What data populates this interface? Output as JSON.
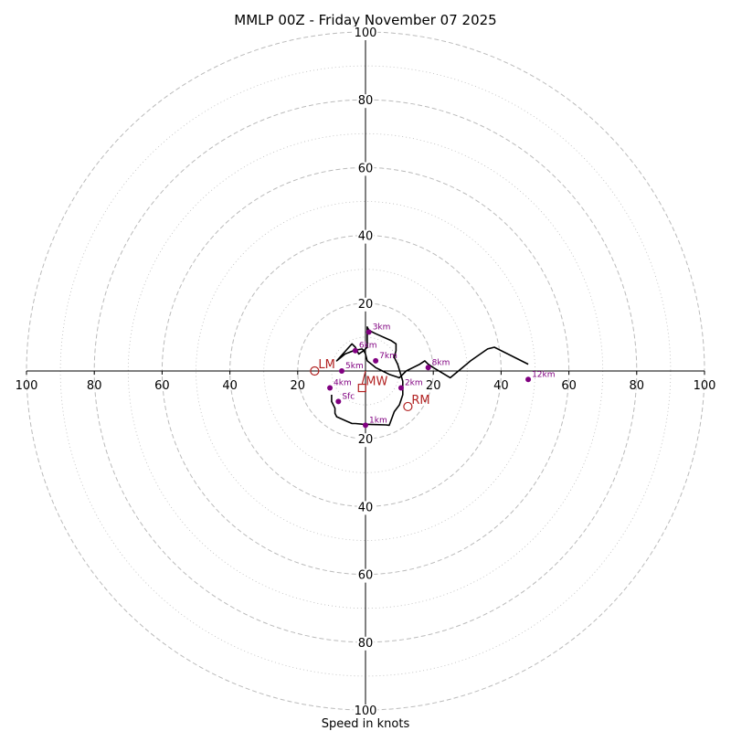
{
  "chart_data": {
    "type": "hodograph",
    "title": "MMLP 00Z - Friday November 07 2025",
    "xlabel": "Speed in knots",
    "range": [
      -100,
      100
    ],
    "rings": [
      20,
      40,
      60,
      80,
      100
    ],
    "tick_labels": [
      "100",
      "80",
      "60",
      "40",
      "20",
      "20",
      "40",
      "60",
      "80",
      "100"
    ],
    "trace_u": [
      -10,
      -10,
      -9,
      -9,
      -8.5,
      -4,
      -3,
      -1,
      2,
      6,
      7,
      8.5,
      10,
      11,
      11,
      11,
      9.5,
      8.5,
      9,
      9,
      7.5,
      3,
      1,
      0.5,
      0.5,
      0.5,
      -0.5,
      -2,
      -3,
      -4,
      -8.5,
      -6,
      -3.5,
      -1,
      -0.5,
      0,
      0.5,
      3,
      5,
      7,
      10,
      12,
      14,
      16,
      17.5,
      18.5,
      20,
      25,
      31,
      36,
      38,
      48
    ],
    "trace_v": [
      -7,
      -9,
      -11,
      -12.5,
      -13.5,
      -15.5,
      -15.5,
      -15.7,
      -15.8,
      -15.9,
      -16,
      -12,
      -10,
      -7,
      -5,
      -3,
      2,
      4,
      6,
      8,
      9,
      11,
      12,
      13,
      10,
      7,
      6,
      5,
      7,
      8,
      3,
      5,
      6,
      6.5,
      6,
      5,
      3,
      1,
      0,
      -1,
      -2,
      0,
      1,
      2,
      3,
      2,
      1,
      -2,
      3,
      6.5,
      7,
      2
    ],
    "levels": [
      {
        "label": "Sfc",
        "u": -8,
        "v": -9
      },
      {
        "label": "1km",
        "u": 0,
        "v": -16
      },
      {
        "label": "2km",
        "u": 10.5,
        "v": -5
      },
      {
        "label": "3km",
        "u": 1,
        "v": 11.5
      },
      {
        "label": "4km",
        "u": -10.5,
        "v": -5
      },
      {
        "label": "5km",
        "u": -7,
        "v": 0
      },
      {
        "label": "6km",
        "u": -3,
        "v": 6
      },
      {
        "label": "7km",
        "u": 3,
        "v": 3
      },
      {
        "label": "8km",
        "u": 18.5,
        "v": 1
      },
      {
        "label": "12km",
        "u": 48,
        "v": -2.5
      }
    ],
    "motions": [
      {
        "label": "LM",
        "u": -15,
        "v": 0,
        "shape": "circle"
      },
      {
        "label": "RM",
        "u": 12.5,
        "v": -10.5,
        "shape": "circle"
      },
      {
        "label": "MW",
        "u": -1,
        "v": -5,
        "shape": "square"
      }
    ],
    "colors": {
      "trace": "#000000",
      "level": "#800080",
      "motion": "#b22222",
      "ring": "#bbbbbb",
      "axis": "#000000"
    }
  }
}
